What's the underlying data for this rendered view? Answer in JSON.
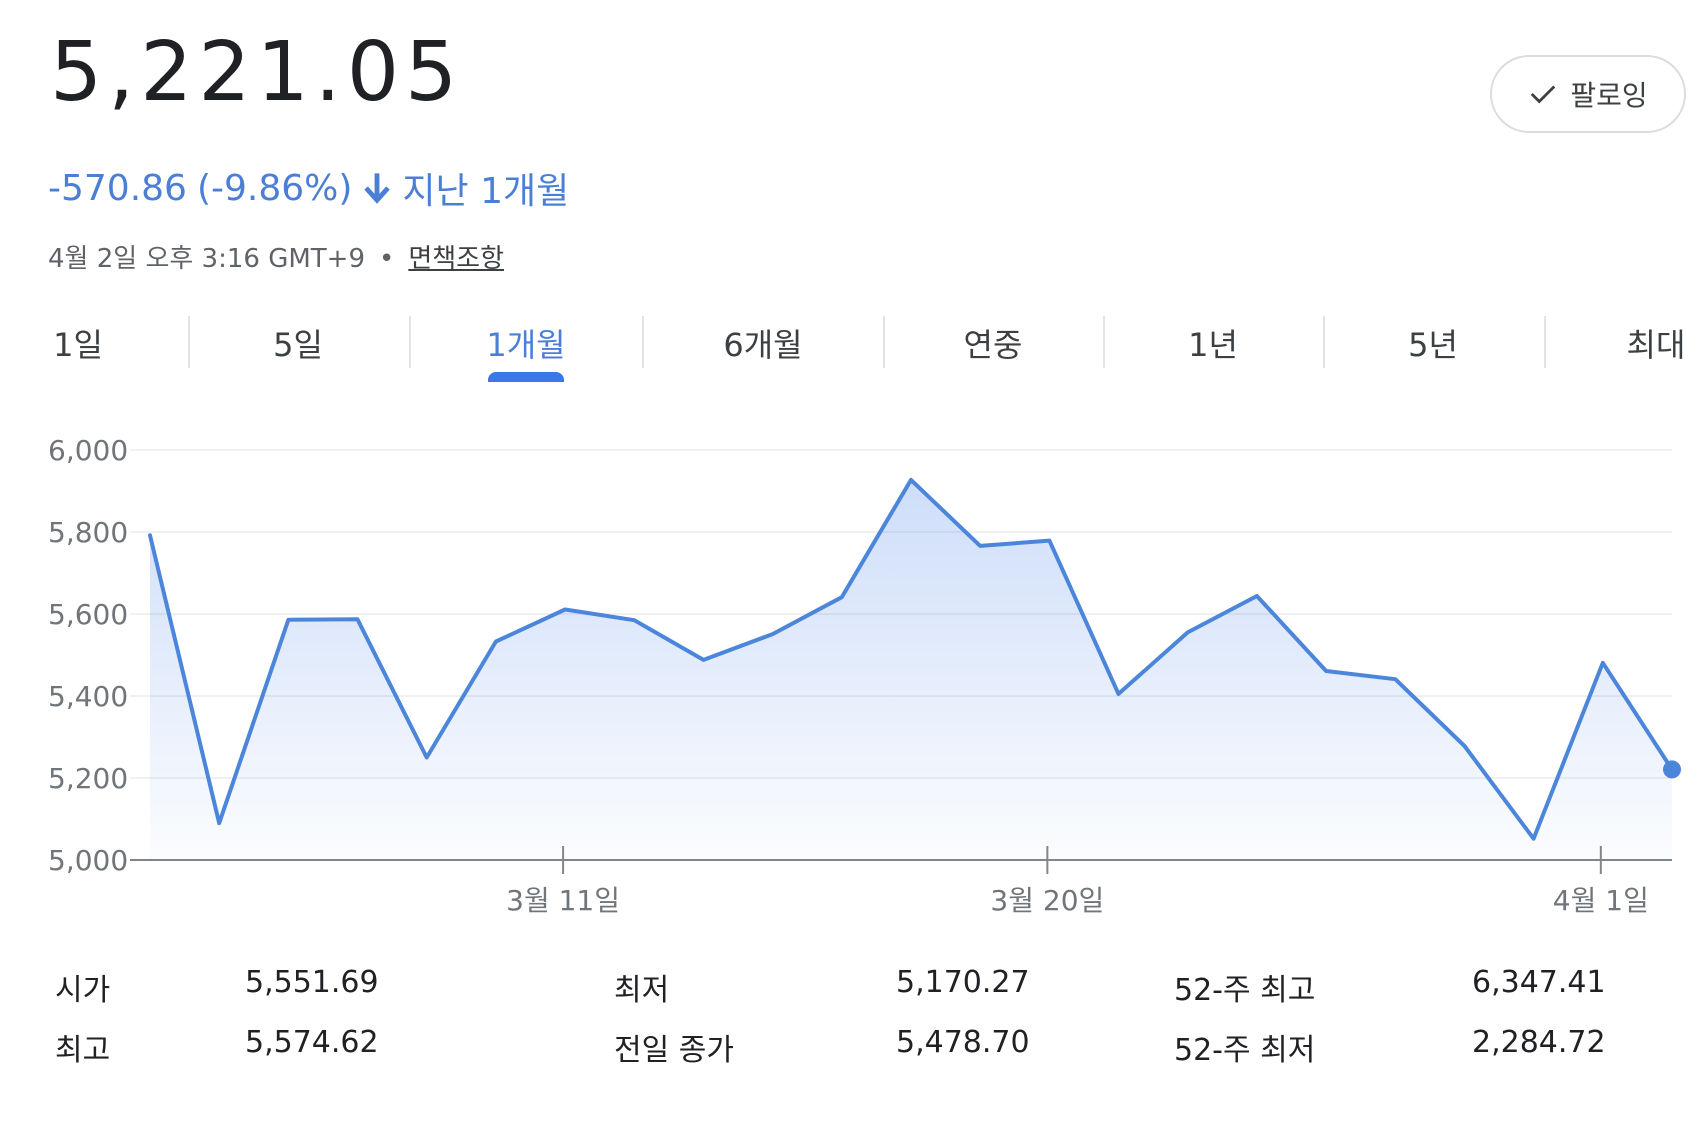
{
  "price": "5,221.05",
  "follow_label": "팔로잉",
  "change": {
    "amount": "-570.86",
    "percent": "(-9.86%)",
    "period": "지난 1개월",
    "color": "#4b7fd6"
  },
  "timestamp": "4월 2일 오후 3:16 GMT+9",
  "separator": "•",
  "disclaimer": "면책조항",
  "tabs": [
    "1일",
    "5일",
    "1개월",
    "6개월",
    "연중",
    "1년",
    "5년",
    "최대"
  ],
  "active_tab": "1개월",
  "chart_data": {
    "type": "area",
    "ylim": [
      5000,
      6000
    ],
    "yticks": [
      "6,000",
      "5,800",
      "5,600",
      "5,400",
      "5,200",
      "5,000"
    ],
    "xtick_labels": [
      "3월 11일",
      "3월 20일",
      "4월 1일"
    ],
    "line_color": "#4b86db",
    "values": [
      5792,
      5090,
      5586,
      5587,
      5250,
      5533,
      5611,
      5585,
      5488,
      5551,
      5641,
      5927,
      5766,
      5779,
      5405,
      5555,
      5644,
      5461,
      5441,
      5278,
      5052,
      5481,
      5221
    ]
  },
  "stats": [
    [
      {
        "label": "시가",
        "value": "5,551.69"
      },
      {
        "label": "최저",
        "value": "5,170.27"
      },
      {
        "label": "52-주 최고",
        "value": "6,347.41"
      }
    ],
    [
      {
        "label": "최고",
        "value": "5,574.62"
      },
      {
        "label": "전일 종가",
        "value": "5,478.70"
      },
      {
        "label": "52-주 최저",
        "value": "2,284.72"
      }
    ]
  ]
}
